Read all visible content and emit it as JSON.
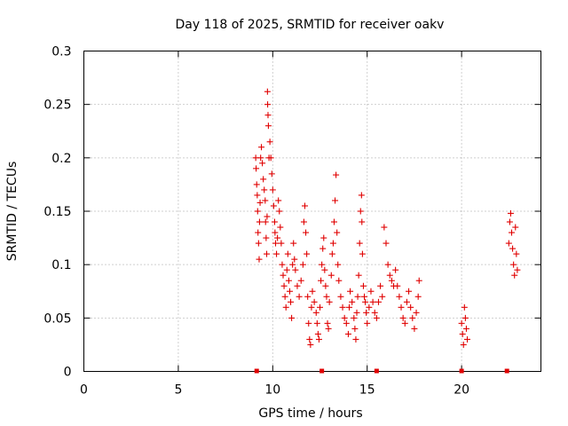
{
  "chart_data": {
    "type": "scatter",
    "title": "Day 118 of 2025, SRMTID for receiver oakv",
    "xlabel": "GPS time / hours",
    "ylabel": "SRMTID / TECUs",
    "xlim": [
      0,
      24.2
    ],
    "ylim": [
      0,
      0.3
    ],
    "x_ticks": [
      0,
      5,
      10,
      15,
      20
    ],
    "y_ticks": [
      0,
      0.05,
      0.1,
      0.15,
      0.2,
      0.25,
      0.3
    ],
    "x_tick_labels": [
      "0",
      "5",
      "10",
      "15",
      "20"
    ],
    "y_tick_labels": [
      "0",
      "0.05",
      "0.1",
      "0.15",
      "0.2",
      "0.25",
      "0.3"
    ],
    "grid": true,
    "marker": "+",
    "series_color": "#e00000",
    "series": [
      {
        "name": "SRMTID",
        "points": [
          [
            9.1,
            0.2
          ],
          [
            9.12,
            0.19
          ],
          [
            9.15,
            0.175
          ],
          [
            9.18,
            0.165
          ],
          [
            9.2,
            0.15
          ],
          [
            9.22,
            0.13
          ],
          [
            9.25,
            0.12
          ],
          [
            9.28,
            0.105
          ],
          [
            9.3,
            0.14
          ],
          [
            9.33,
            0.158
          ],
          [
            9.36,
            0.2
          ],
          [
            9.4,
            0.21
          ],
          [
            9.45,
            0.195
          ],
          [
            9.5,
            0.18
          ],
          [
            9.55,
            0.17
          ],
          [
            9.6,
            0.16
          ],
          [
            9.62,
            0.14
          ],
          [
            9.65,
            0.125
          ],
          [
            9.68,
            0.11
          ],
          [
            9.7,
            0.145
          ],
          [
            9.72,
            0.262
          ],
          [
            9.73,
            0.25
          ],
          [
            9.75,
            0.24
          ],
          [
            9.77,
            0.23
          ],
          [
            9.8,
            0.2
          ],
          [
            9.85,
            0.215
          ],
          [
            9.9,
            0.2
          ],
          [
            9.95,
            0.185
          ],
          [
            10.0,
            0.17
          ],
          [
            10.05,
            0.155
          ],
          [
            10.1,
            0.14
          ],
          [
            10.12,
            0.13
          ],
          [
            10.15,
            0.12
          ],
          [
            10.2,
            0.11
          ],
          [
            10.25,
            0.125
          ],
          [
            10.3,
            0.16
          ],
          [
            10.35,
            0.15
          ],
          [
            10.4,
            0.135
          ],
          [
            10.45,
            0.12
          ],
          [
            10.5,
            0.1
          ],
          [
            10.55,
            0.09
          ],
          [
            10.6,
            0.08
          ],
          [
            10.65,
            0.07
          ],
          [
            10.7,
            0.06
          ],
          [
            10.75,
            0.095
          ],
          [
            10.8,
            0.11
          ],
          [
            10.85,
            0.085
          ],
          [
            10.9,
            0.075
          ],
          [
            10.95,
            0.065
          ],
          [
            11.0,
            0.05
          ],
          [
            11.05,
            0.1
          ],
          [
            11.1,
            0.12
          ],
          [
            11.15,
            0.105
          ],
          [
            11.2,
            0.095
          ],
          [
            11.3,
            0.08
          ],
          [
            11.4,
            0.07
          ],
          [
            11.5,
            0.085
          ],
          [
            11.6,
            0.1
          ],
          [
            11.65,
            0.14
          ],
          [
            11.7,
            0.155
          ],
          [
            11.75,
            0.13
          ],
          [
            11.8,
            0.11
          ],
          [
            11.85,
            0.07
          ],
          [
            11.9,
            0.045
          ],
          [
            11.95,
            0.03
          ],
          [
            12.0,
            0.025
          ],
          [
            12.05,
            0.06
          ],
          [
            12.1,
            0.075
          ],
          [
            12.2,
            0.065
          ],
          [
            12.3,
            0.055
          ],
          [
            12.35,
            0.045
          ],
          [
            12.4,
            0.035
          ],
          [
            12.45,
            0.03
          ],
          [
            12.5,
            0.06
          ],
          [
            12.55,
            0.085
          ],
          [
            12.6,
            0.1
          ],
          [
            12.65,
            0.115
          ],
          [
            12.7,
            0.125
          ],
          [
            12.75,
            0.095
          ],
          [
            12.8,
            0.08
          ],
          [
            12.85,
            0.07
          ],
          [
            12.9,
            0.045
          ],
          [
            12.95,
            0.04
          ],
          [
            13.0,
            0.065
          ],
          [
            13.1,
            0.09
          ],
          [
            13.15,
            0.11
          ],
          [
            13.2,
            0.12
          ],
          [
            13.25,
            0.14
          ],
          [
            13.3,
            0.16
          ],
          [
            13.35,
            0.184
          ],
          [
            13.4,
            0.13
          ],
          [
            13.45,
            0.1
          ],
          [
            13.5,
            0.085
          ],
          [
            13.6,
            0.07
          ],
          [
            13.7,
            0.06
          ],
          [
            13.8,
            0.05
          ],
          [
            13.9,
            0.045
          ],
          [
            14.0,
            0.035
          ],
          [
            14.05,
            0.06
          ],
          [
            14.1,
            0.075
          ],
          [
            14.2,
            0.065
          ],
          [
            14.3,
            0.05
          ],
          [
            14.35,
            0.04
          ],
          [
            14.4,
            0.03
          ],
          [
            14.45,
            0.055
          ],
          [
            14.5,
            0.07
          ],
          [
            14.55,
            0.09
          ],
          [
            14.6,
            0.12
          ],
          [
            14.65,
            0.15
          ],
          [
            14.7,
            0.165
          ],
          [
            14.72,
            0.14
          ],
          [
            14.75,
            0.11
          ],
          [
            14.8,
            0.08
          ],
          [
            14.85,
            0.07
          ],
          [
            14.9,
            0.065
          ],
          [
            14.95,
            0.055
          ],
          [
            15.0,
            0.045
          ],
          [
            15.1,
            0.06
          ],
          [
            15.2,
            0.075
          ],
          [
            15.3,
            0.065
          ],
          [
            15.4,
            0.055
          ],
          [
            15.5,
            0.05
          ],
          [
            15.6,
            0.065
          ],
          [
            15.7,
            0.08
          ],
          [
            15.8,
            0.07
          ],
          [
            15.9,
            0.135
          ],
          [
            16.0,
            0.12
          ],
          [
            16.1,
            0.1
          ],
          [
            16.2,
            0.09
          ],
          [
            16.3,
            0.085
          ],
          [
            16.4,
            0.08
          ],
          [
            16.5,
            0.095
          ],
          [
            16.6,
            0.08
          ],
          [
            16.7,
            0.07
          ],
          [
            16.8,
            0.06
          ],
          [
            16.9,
            0.05
          ],
          [
            17.0,
            0.045
          ],
          [
            17.1,
            0.065
          ],
          [
            17.2,
            0.075
          ],
          [
            17.3,
            0.06
          ],
          [
            17.4,
            0.05
          ],
          [
            17.5,
            0.04
          ],
          [
            17.6,
            0.055
          ],
          [
            17.7,
            0.07
          ],
          [
            17.75,
            0.085
          ],
          [
            20.0,
            0.045
          ],
          [
            20.05,
            0.035
          ],
          [
            20.1,
            0.025
          ],
          [
            20.15,
            0.06
          ],
          [
            20.2,
            0.05
          ],
          [
            20.25,
            0.04
          ],
          [
            20.3,
            0.03
          ],
          [
            22.5,
            0.12
          ],
          [
            22.55,
            0.14
          ],
          [
            22.6,
            0.148
          ],
          [
            22.65,
            0.13
          ],
          [
            22.7,
            0.115
          ],
          [
            22.75,
            0.1
          ],
          [
            22.8,
            0.09
          ],
          [
            22.85,
            0.135
          ],
          [
            22.9,
            0.11
          ],
          [
            22.95,
            0.095
          ]
        ]
      }
    ],
    "gap_markers_x": [
      9.15,
      12.6,
      15.5,
      20.0,
      22.4
    ]
  }
}
